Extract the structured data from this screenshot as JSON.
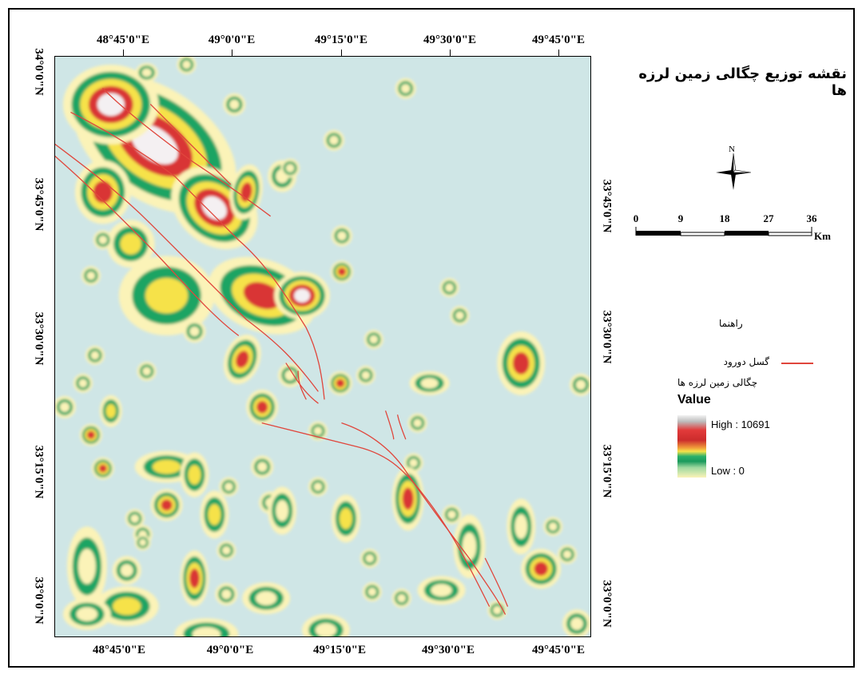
{
  "map": {
    "title": "نقشه توزیع چگالی زمین لرزه ها",
    "longitude_ticks": [
      "48°45'0\"E",
      "49°0'0\"E",
      "49°15'0\"E",
      "49°30'0\"E",
      "49°45'0\"E"
    ],
    "latitude_ticks": [
      "34°0'0\"N",
      "33°45'0\"N",
      "33°30'0\"N",
      "33°15'0\"N",
      "33°0'0\"N"
    ],
    "north_arrow_label": "N",
    "scale_bar": {
      "labels": [
        "0",
        "9",
        "18",
        "27",
        "36"
      ],
      "unit": "Km"
    },
    "legend": {
      "header": "راهنما",
      "fault_label": "گسل دورود",
      "fault_color": "#e0463c",
      "density_title": "چگالی زمین لرزه ها",
      "value_label": "Value",
      "high_label": "High : 10691",
      "low_label": "Low : 0"
    },
    "colors": {
      "background": "#cfe6e6",
      "low": "#fbf3b8",
      "green": "#1fa463",
      "yellow": "#f6e24a",
      "red": "#d93434",
      "high": "#f4f0f2"
    }
  }
}
